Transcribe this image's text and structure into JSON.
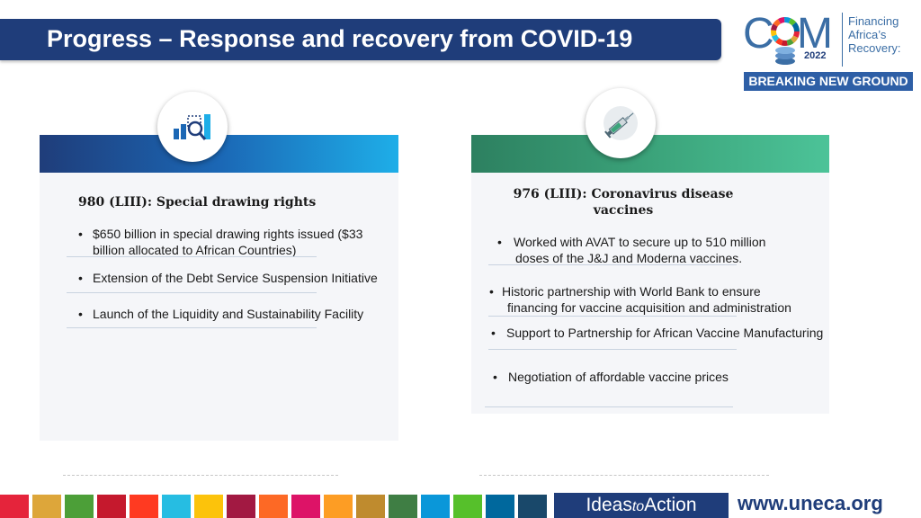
{
  "header": {
    "title": "Progress – Response and recovery from COVID-19"
  },
  "logo": {
    "letter_c": "C",
    "letter_m": "M",
    "year": "2022",
    "tagline_line1": "Financing",
    "tagline_line2": "Africa’s",
    "tagline_line3": "Recovery:",
    "band": "BREAKING NEW GROUND"
  },
  "left_card": {
    "icon": "data-analysis-icon",
    "title": "980 (LIII): Special drawing rights",
    "bullets": [
      {
        "line1": "$650 billion in special drawing rights issued ($33",
        "line2": "billion allocated to African Countries)"
      },
      {
        "line1": "Extension of the Debt Service Suspension Initiative"
      },
      {
        "line1": "Launch of the Liquidity and Sustainability Facility"
      }
    ]
  },
  "right_card": {
    "icon": "vaccine-syringe-icon",
    "title_line1": "976 (LIII): Coronavirus disease",
    "title_line2": "vaccines",
    "bullets": [
      {
        "line1": "Worked with AVAT to secure up to 510 million",
        "line2": "doses of the J&J and Moderna vaccines."
      },
      {
        "line1": "Historic partnership with World Bank to ensure",
        "line2": "financing for vaccine acquisition and administration"
      },
      {
        "line1": "Support to Partnership for African Vaccine Manufacturing"
      },
      {
        "line1": "Negotiation of affordable vaccine prices"
      }
    ]
  },
  "bullet_char": "•",
  "footer": {
    "ideas_part1": "Ideas",
    "ideas_part2": "to",
    "ideas_part3": "Action",
    "url": "www.uneca.org",
    "sdg_colors": [
      "#e5243b",
      "#dda63a",
      "#4c9f38",
      "#c5192d",
      "#ff3a21",
      "#26bde2",
      "#fcc30b",
      "#a21942",
      "#fd6925",
      "#dd1367",
      "#fd9d24",
      "#bf8b2e",
      "#3f7e44",
      "#0a97d9",
      "#56c02b",
      "#00689d",
      "#19486a"
    ]
  }
}
